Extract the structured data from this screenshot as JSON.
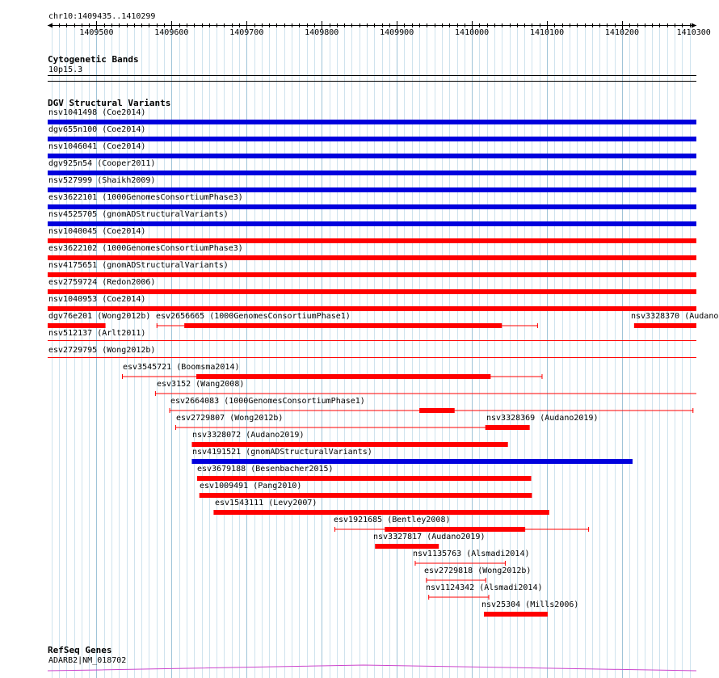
{
  "ruler": {
    "locus": "chr10:1409435..1410299",
    "start": 1409435,
    "end": 1410299,
    "ticks": [
      1409500,
      1409600,
      1409700,
      1409800,
      1409900,
      1410000,
      1410100,
      1410200,
      1410300
    ],
    "tick_labels": [
      "1409500",
      "1409600",
      "1409700",
      "1409800",
      "1409900",
      "1410000",
      "1410100",
      "1410200",
      "1410300"
    ]
  },
  "cytobands": {
    "title": "Cytogenetic Bands",
    "band": "10p15.3"
  },
  "dgv": {
    "title": "DGV Structural Variants",
    "colors": {
      "gain": "#0000dd",
      "loss": "#ff0000"
    },
    "features": [
      {
        "label": "nsv1041498 (Coe2014)",
        "color": "blue",
        "start": 1409435,
        "end": 1410299
      },
      {
        "label": "dgv655n100 (Coe2014)",
        "color": "blue",
        "start": 1409435,
        "end": 1410299
      },
      {
        "label": "nsv1046041 (Coe2014)",
        "color": "blue",
        "start": 1409435,
        "end": 1410299
      },
      {
        "label": "dgv925n54 (Cooper2011)",
        "color": "blue",
        "start": 1409435,
        "end": 1410299
      },
      {
        "label": "nsv527999 (Shaikh2009)",
        "color": "blue",
        "start": 1409435,
        "end": 1410299
      },
      {
        "label": "esv3622101 (1000GenomesConsortiumPhase3)",
        "color": "blue",
        "start": 1409435,
        "end": 1410299
      },
      {
        "label": "nsv4525705 (gnomADStructuralVariants)",
        "color": "blue",
        "start": 1409435,
        "end": 1410299
      },
      {
        "label": "nsv1040045 (Coe2014)",
        "color": "red",
        "start": 1409435,
        "end": 1410299
      },
      {
        "label": "esv3622102 (1000GenomesConsortiumPhase3)",
        "color": "red",
        "start": 1409435,
        "end": 1410299
      },
      {
        "label": "nsv4175651 (gnomADStructuralVariants)",
        "color": "red",
        "start": 1409435,
        "end": 1410299
      },
      {
        "label": "esv2759724 (Redon2006)",
        "color": "red",
        "start": 1409435,
        "end": 1410299
      },
      {
        "label": "nsv1040953 (Coe2014)",
        "color": "red",
        "start": 1409435,
        "end": 1410299
      },
      {
        "label": "dgv76e201 (Wong2012b)",
        "color": "red",
        "start": 1409435,
        "end": 1409512
      },
      {
        "label": "esv2656665 (1000GenomesConsortiumPhase1)",
        "color": "red",
        "start": 1409580,
        "end": 1410088,
        "thick_start": 1409617,
        "thick_end": 1410040
      },
      {
        "label": "nsv3328370 (Audano2019)",
        "color": "red",
        "start": 1410216,
        "end": 1410299
      },
      {
        "label": "nsv512137 (Arlt2011)",
        "color": "red",
        "thin": true,
        "start": 1409435,
        "end": 1410299
      },
      {
        "label": "esv2729795 (Wong2012b)",
        "color": "red",
        "thin": true,
        "start": 1409435,
        "end": 1410299
      },
      {
        "label": "esv3545721 (Boomsma2014)",
        "color": "red",
        "start": 1409534,
        "end": 1410094,
        "thick_start": 1409633,
        "thick_end": 1410025
      },
      {
        "label": "esv3152 (Wang2008)",
        "color": "red",
        "start": 1409578,
        "end": 1410299,
        "thin_only": true
      },
      {
        "label": "esv2664083 (1000GenomesConsortiumPhase1)",
        "color": "red",
        "start": 1409597,
        "end": 1410295,
        "thick_start": 1409930,
        "thick_end": 1409977
      },
      {
        "label": "esv2729807 (Wong2012b)",
        "color": "red",
        "start": 1409605,
        "end": 1410019,
        "thin_only": true
      },
      {
        "label": "nsv3328369 (Audano2019)",
        "color": "red",
        "start": 1410018,
        "end": 1410077
      },
      {
        "label": "nsv3328072 (Audano2019)",
        "color": "red",
        "start": 1409627,
        "end": 1410048
      },
      {
        "label": "nsv4191521 (gnomADStructuralVariants)",
        "color": "blue",
        "start": 1409627,
        "end": 1410214
      },
      {
        "label": "esv3679188 (Besenbacher2015)",
        "color": "red",
        "start": 1409634,
        "end": 1410079
      },
      {
        "label": "esv1009491 (Pang2010)",
        "color": "red",
        "start": 1409637,
        "end": 1410080
      },
      {
        "label": "esv1543111 (Levy2007)",
        "color": "red",
        "start": 1409656,
        "end": 1410103
      },
      {
        "label": "esv1921685 (Bentley2008)",
        "color": "red",
        "start": 1409817,
        "end": 1410156,
        "thick_start": 1409884,
        "thick_end": 1410071
      },
      {
        "label": "nsv3327817 (Audano2019)",
        "color": "red",
        "start": 1409871,
        "end": 1409956
      },
      {
        "label": "nsv1135763 (Alsmadi2014)",
        "color": "red",
        "start": 1409924,
        "end": 1410045,
        "thin_only": true
      },
      {
        "label": "esv2729818 (Wong2012b)",
        "color": "red",
        "start": 1409939,
        "end": 1410019,
        "thin_only": true
      },
      {
        "label": "nsv1124342 (Alsmadi2014)",
        "color": "red",
        "start": 1409942,
        "end": 1410023,
        "thin_only": true
      },
      {
        "label": "nsv25304 (Mills2006)",
        "color": "red",
        "start": 1410016,
        "end": 1410101
      }
    ]
  },
  "refseq": {
    "title": "RefSeq Genes",
    "gene": "ADARB2|NM_018702"
  }
}
